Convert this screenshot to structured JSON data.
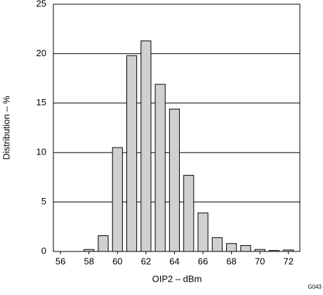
{
  "chart_data": {
    "type": "histogram",
    "xlabel": "OIP2 – dBm",
    "ylabel": "Distribution – %",
    "annotation": "G043",
    "bins": [
      57.5,
      58.5,
      59.5,
      60.5,
      61.5,
      62.5,
      63.5,
      64.5,
      65.5,
      66.5,
      67.5,
      68.5,
      69.5,
      70.5,
      71.5,
      72.5
    ],
    "values": [
      0.2,
      1.6,
      10.5,
      19.8,
      21.3,
      16.9,
      14.4,
      7.7,
      3.9,
      1.4,
      0.8,
      0.6,
      0.2,
      0.1,
      0.15
    ],
    "color": "#d0d0d0",
    "xlim": [
      55.5,
      72.8
    ],
    "xticks": [
      56,
      58,
      60,
      62,
      64,
      66,
      68,
      70,
      72
    ],
    "ylim": [
      0,
      25
    ],
    "yticks": [
      0,
      5,
      10,
      15,
      20,
      25
    ],
    "grid": true
  }
}
